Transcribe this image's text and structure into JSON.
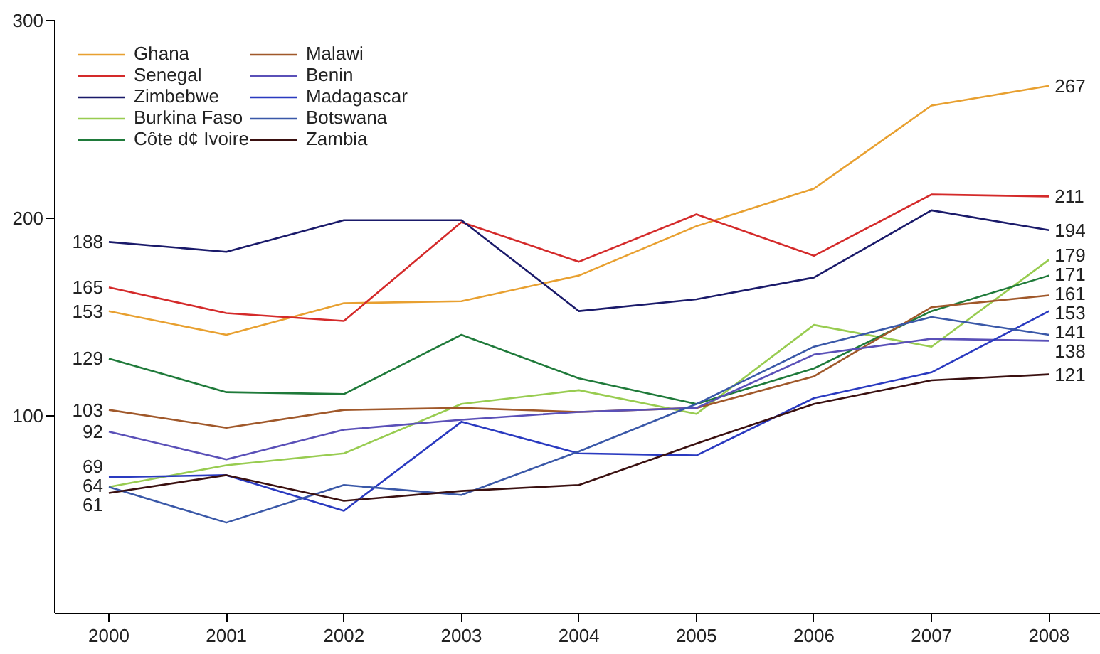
{
  "chart_data": {
    "type": "line",
    "x": [
      2000,
      2001,
      2002,
      2003,
      2004,
      2005,
      2006,
      2007,
      2008
    ],
    "xlim": [
      1999.54,
      2008.44
    ],
    "xticks": [
      2000,
      2001,
      2002,
      2003,
      2004,
      2005,
      2006,
      2007,
      2008
    ],
    "ylim": [
      0,
      300
    ],
    "yticks": [
      100,
      200,
      300
    ],
    "legend": "top left",
    "grid": false,
    "marker": "none",
    "line_style": "solid",
    "series": [
      {
        "name": "Ghana",
        "color": "#e8a030",
        "values": [
          153,
          141,
          157,
          158,
          171,
          196,
          215,
          257,
          267
        ],
        "value_labels": [
          "153",
          null,
          null,
          null,
          null,
          null,
          null,
          null,
          "267"
        ]
      },
      {
        "name": "Senegal",
        "color": "#d42a2a",
        "values": [
          165,
          152,
          148,
          198,
          178,
          202,
          181,
          212,
          211
        ],
        "value_labels": [
          "165",
          null,
          null,
          null,
          null,
          null,
          null,
          null,
          "211"
        ]
      },
      {
        "name": "Zimbebwe",
        "color": "#1a1a6a",
        "values": [
          188,
          183,
          199,
          199,
          153,
          159,
          170,
          204,
          194
        ],
        "value_labels": [
          "188",
          null,
          null,
          null,
          null,
          null,
          null,
          null,
          "194"
        ]
      },
      {
        "name": "Burkina Faso",
        "color": "#98cc50",
        "values": [
          64,
          75,
          81,
          106,
          113,
          101,
          146,
          135,
          179
        ],
        "value_labels": [
          "64",
          null,
          null,
          null,
          null,
          null,
          null,
          null,
          "179"
        ]
      },
      {
        "name": "Côte d¢ Ivoire",
        "color": "#1f7a3a",
        "values": [
          129,
          112,
          111,
          141,
          119,
          106,
          124,
          153,
          171
        ],
        "value_labels": [
          "129",
          null,
          null,
          null,
          null,
          null,
          null,
          null,
          "171"
        ]
      },
      {
        "name": "Malawi",
        "color": "#a0582a",
        "values": [
          103,
          94,
          103,
          104,
          102,
          104,
          120,
          155,
          161
        ],
        "value_labels": [
          "103",
          null,
          null,
          null,
          null,
          null,
          null,
          null,
          "161"
        ]
      },
      {
        "name": "Benin",
        "color": "#5a50b8",
        "values": [
          92,
          78,
          93,
          98,
          102,
          104,
          131,
          139,
          138
        ],
        "value_labels": [
          "92",
          null,
          null,
          null,
          null,
          null,
          null,
          null,
          "138"
        ]
      },
      {
        "name": "Madagascar",
        "color": "#2a3ac0",
        "values": [
          69,
          70,
          52,
          97,
          81,
          80,
          109,
          122,
          153
        ],
        "value_labels": [
          "69",
          null,
          null,
          null,
          null,
          null,
          null,
          null,
          "153"
        ]
      },
      {
        "name": "Botswana",
        "color": "#3a58a8",
        "values": [
          64,
          46,
          65,
          60,
          82,
          106,
          135,
          150,
          141
        ],
        "value_labels": [
          null,
          null,
          null,
          null,
          null,
          null,
          null,
          null,
          "141"
        ]
      },
      {
        "name": "Zambia",
        "color": "#3a1010",
        "values": [
          61,
          70,
          57,
          62,
          65,
          86,
          106,
          118,
          121
        ],
        "value_labels": [
          "61",
          null,
          null,
          null,
          null,
          null,
          null,
          null,
          "121"
        ]
      }
    ]
  }
}
